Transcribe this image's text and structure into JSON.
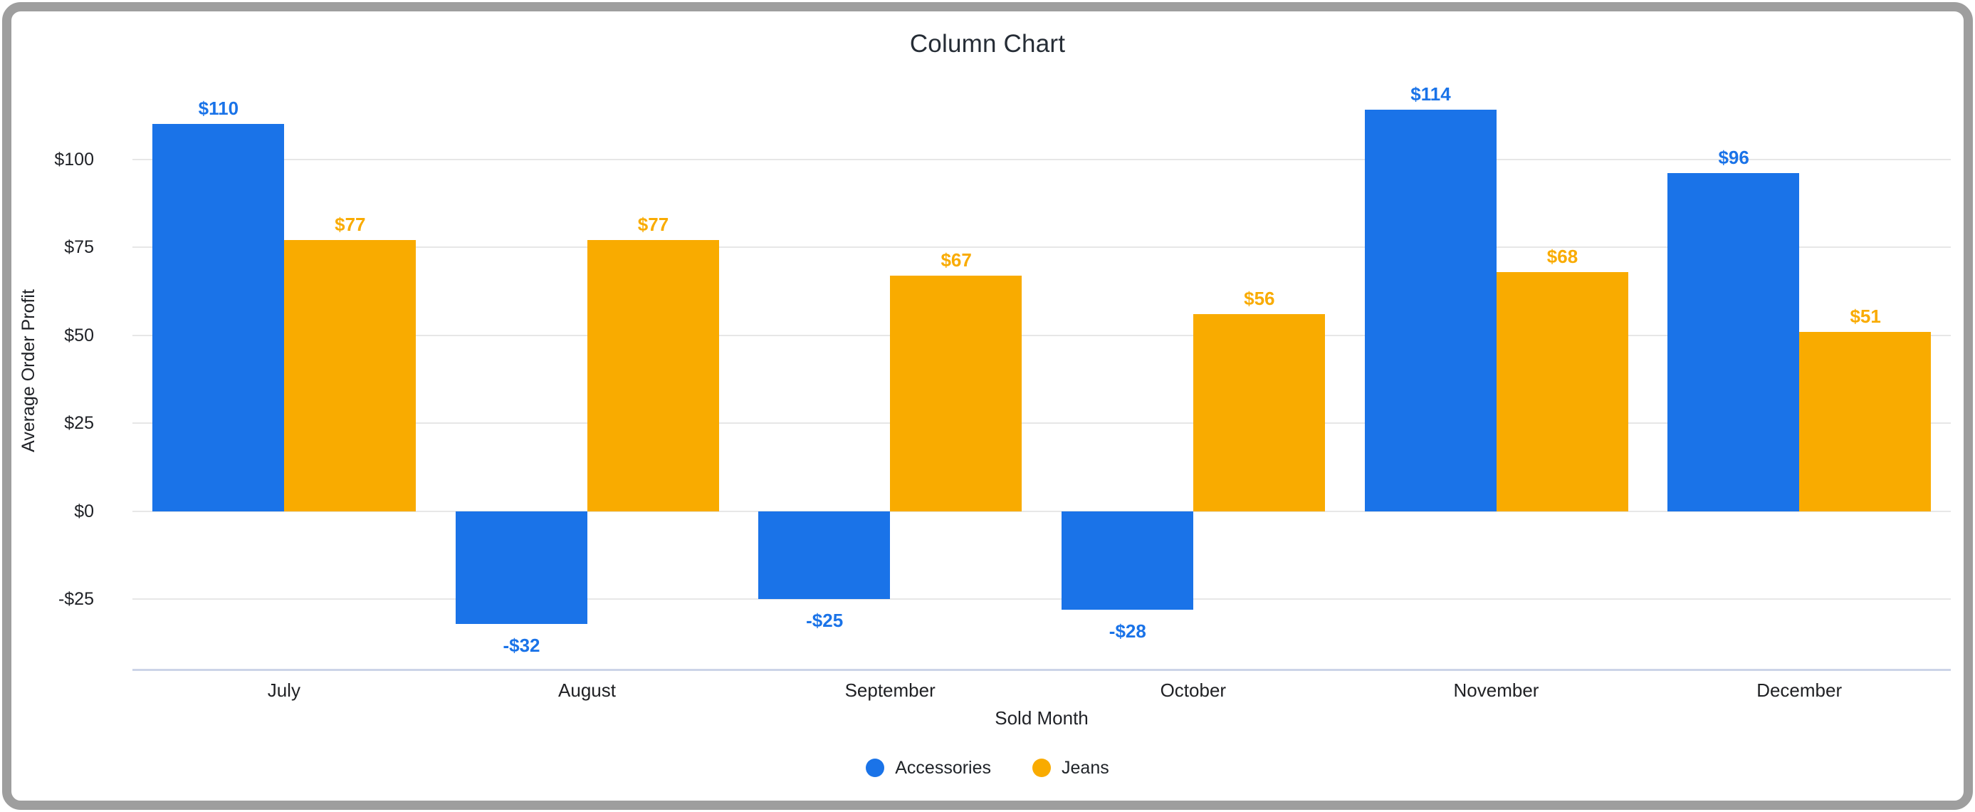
{
  "chart_data": {
    "type": "bar",
    "title": "Column Chart",
    "xlabel": "Sold Month",
    "ylabel": "Average Order Profit",
    "categories": [
      "July",
      "August",
      "September",
      "October",
      "November",
      "December"
    ],
    "series": [
      {
        "name": "Accessories",
        "color": "#1a73e8",
        "values": [
          110,
          -32,
          -25,
          -28,
          114,
          96
        ],
        "labels": [
          "$110",
          "-$32",
          "-$25",
          "-$28",
          "$114",
          "$96"
        ]
      },
      {
        "name": "Jeans",
        "color": "#f9ab00",
        "values": [
          77,
          77,
          67,
          56,
          68,
          51
        ],
        "labels": [
          "$77",
          "$77",
          "$67",
          "$56",
          "$68",
          "$51"
        ]
      }
    ],
    "y_ticks": [
      {
        "value": 100,
        "label": "$100"
      },
      {
        "value": 75,
        "label": "$75"
      },
      {
        "value": 50,
        "label": "$50"
      },
      {
        "value": 25,
        "label": "$25"
      },
      {
        "value": 0,
        "label": "$0"
      },
      {
        "value": -25,
        "label": "-$25"
      }
    ],
    "ylim": [
      -45,
      125
    ],
    "grid": true,
    "legend_position": "bottom"
  },
  "legend": {
    "items": [
      {
        "label": "Accessories",
        "color": "#1a73e8"
      },
      {
        "label": "Jeans",
        "color": "#f9ab00"
      }
    ]
  },
  "styles": {
    "gridline_color": "#e7e7e7",
    "baseline_color": "#ccd4e8",
    "title_color": "#262d36",
    "text_color": "#202124",
    "frame_color": "#9e9e9e",
    "background": "#ffffff"
  }
}
